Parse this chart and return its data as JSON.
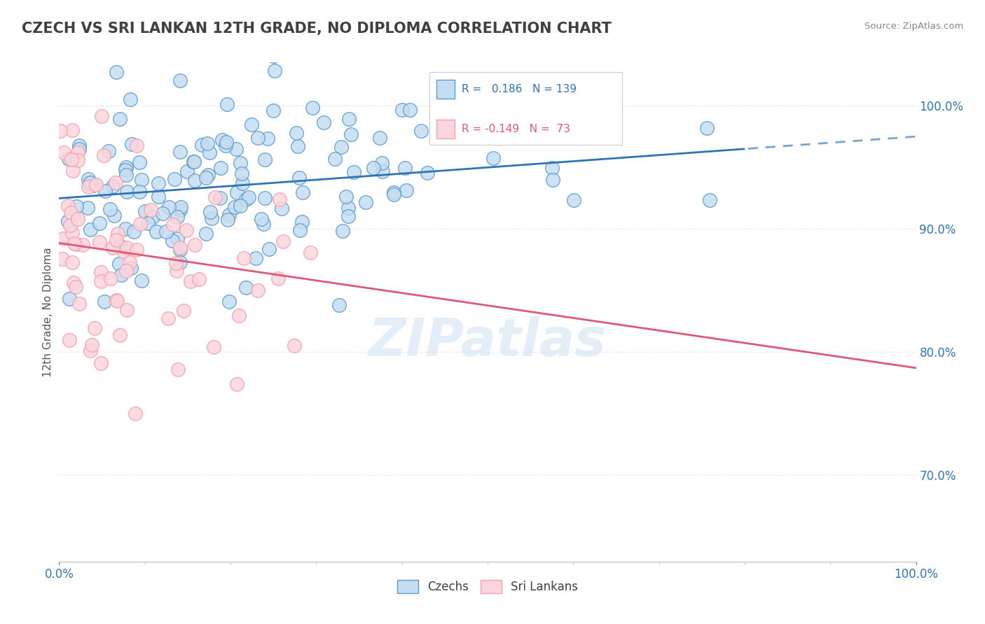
{
  "title": "CZECH VS SRI LANKAN 12TH GRADE, NO DIPLOMA CORRELATION CHART",
  "source": "Source: ZipAtlas.com",
  "ylabel": "12th Grade, No Diploma",
  "czech_R": 0.186,
  "czech_N": 139,
  "srilankan_R": -0.149,
  "srilankan_N": 73,
  "blue_face_color": "#c5ddf0",
  "blue_edge_color": "#5b9bd5",
  "pink_face_color": "#fcd5dc",
  "pink_edge_color": "#f4a0b0",
  "blue_line_color": "#2e75b6",
  "pink_line_color": "#e05878",
  "blue_text_color": "#2e75b6",
  "pink_text_color": "#e05878",
  "title_color": "#404040",
  "axis_label_color": "#2e75b6",
  "watermark": "ZIPatlas",
  "background_color": "#ffffff",
  "grid_color": "#d8d8ec",
  "ymin": 0.63,
  "ymax": 1.035,
  "yticks": [
    1.0,
    0.9,
    0.8,
    0.7
  ],
  "ytick_labels": [
    "100.0%",
    "90.0%",
    "80.0%",
    "70.0%"
  ]
}
